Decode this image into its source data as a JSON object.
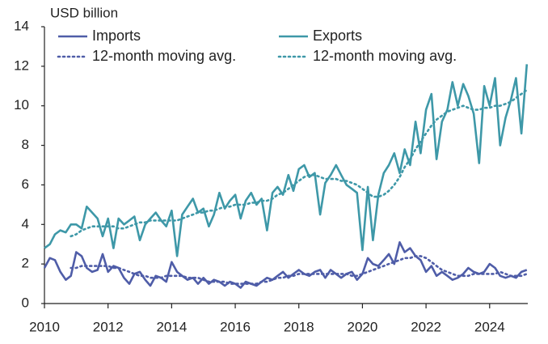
{
  "chart_data": {
    "type": "line",
    "y_label": "USD billion",
    "xlim": [
      2010,
      2025.2
    ],
    "xticks": [
      2010,
      2012,
      2014,
      2016,
      2018,
      2020,
      2022,
      2024
    ],
    "ylim": [
      0,
      14
    ],
    "yticks": [
      0,
      2,
      4,
      6,
      8,
      10,
      12,
      14
    ],
    "x": [
      2010,
      2010.17,
      2010.33,
      2010.5,
      2010.67,
      2010.83,
      2011,
      2011.17,
      2011.33,
      2011.5,
      2011.67,
      2011.83,
      2012,
      2012.17,
      2012.33,
      2012.5,
      2012.67,
      2012.83,
      2013,
      2013.17,
      2013.33,
      2013.5,
      2013.67,
      2013.83,
      2014,
      2014.17,
      2014.33,
      2014.5,
      2014.67,
      2014.83,
      2015,
      2015.17,
      2015.33,
      2015.5,
      2015.67,
      2015.83,
      2016,
      2016.17,
      2016.33,
      2016.5,
      2016.67,
      2016.83,
      2017,
      2017.17,
      2017.33,
      2017.5,
      2017.67,
      2017.83,
      2018,
      2018.17,
      2018.33,
      2018.5,
      2018.67,
      2018.83,
      2019,
      2019.17,
      2019.33,
      2019.5,
      2019.67,
      2019.83,
      2020,
      2020.17,
      2020.33,
      2020.5,
      2020.67,
      2020.83,
      2021,
      2021.17,
      2021.33,
      2021.5,
      2021.67,
      2021.83,
      2022,
      2022.17,
      2022.33,
      2022.5,
      2022.67,
      2022.83,
      2023,
      2023.17,
      2023.33,
      2023.5,
      2023.67,
      2023.83,
      2024,
      2024.17,
      2024.33,
      2024.5,
      2024.67,
      2024.83,
      2025,
      2025.17
    ],
    "series": [
      {
        "name": "Imports",
        "color": "#4f5da8",
        "style": "solid",
        "values": [
          1.8,
          2.3,
          2.2,
          1.6,
          1.2,
          1.4,
          2.6,
          2.4,
          1.8,
          1.6,
          1.7,
          2.5,
          1.6,
          1.9,
          1.8,
          1.3,
          1.0,
          1.5,
          1.6,
          1.2,
          0.9,
          1.4,
          1.3,
          1.1,
          2.1,
          1.6,
          1.4,
          1.2,
          1.3,
          1.0,
          1.3,
          1.0,
          1.2,
          1.1,
          0.9,
          1.1,
          1.0,
          0.8,
          1.1,
          1.0,
          0.9,
          1.1,
          1.3,
          1.2,
          1.4,
          1.6,
          1.3,
          1.5,
          1.7,
          1.5,
          1.4,
          1.6,
          1.7,
          1.3,
          1.7,
          1.5,
          1.3,
          1.5,
          1.6,
          1.2,
          1.5,
          2.3,
          2.0,
          1.9,
          2.2,
          2.5,
          2.0,
          3.1,
          2.6,
          2.8,
          2.4,
          2.2,
          1.6,
          1.9,
          1.4,
          1.6,
          1.4,
          1.2,
          1.3,
          1.5,
          1.8,
          1.6,
          1.5,
          1.6,
          2.0,
          1.8,
          1.4,
          1.3,
          1.4,
          1.3,
          1.6,
          1.7
        ]
      },
      {
        "name": "Exports",
        "color": "#3e98a8",
        "style": "solid",
        "values": [
          2.8,
          3.0,
          3.5,
          3.7,
          3.6,
          4.0,
          4.0,
          3.8,
          4.9,
          4.6,
          4.3,
          3.4,
          4.3,
          2.8,
          4.3,
          4.0,
          4.2,
          4.4,
          3.2,
          4.0,
          4.3,
          4.6,
          4.2,
          3.9,
          4.7,
          2.4,
          4.5,
          4.9,
          5.3,
          4.6,
          4.8,
          3.9,
          4.5,
          5.6,
          4.8,
          5.2,
          5.5,
          4.3,
          5.2,
          5.6,
          5.0,
          5.3,
          3.7,
          5.6,
          5.9,
          5.5,
          6.5,
          5.7,
          6.8,
          7.0,
          6.4,
          6.6,
          4.5,
          6.1,
          6.5,
          7.0,
          6.5,
          6.0,
          5.8,
          5.6,
          2.7,
          5.9,
          3.2,
          5.5,
          6.6,
          7.0,
          7.6,
          6.6,
          7.8,
          7.0,
          9.2,
          7.6,
          9.8,
          10.6,
          7.3,
          9.2,
          9.8,
          11.2,
          10.0,
          11.1,
          10.5,
          9.6,
          7.1,
          11.0,
          10.0,
          11.4,
          8.0,
          9.4,
          10.3,
          11.4,
          8.6,
          12.1
        ]
      },
      {
        "name": "12-month moving avg.",
        "color": "#4f5da8",
        "style": "dotted",
        "values": [
          null,
          null,
          null,
          null,
          null,
          1.8,
          1.8,
          1.9,
          1.9,
          1.9,
          1.9,
          1.9,
          1.9,
          1.8,
          1.8,
          1.7,
          1.6,
          1.5,
          1.4,
          1.4,
          1.3,
          1.3,
          1.3,
          1.4,
          1.4,
          1.4,
          1.4,
          1.3,
          1.3,
          1.3,
          1.2,
          1.1,
          1.1,
          1.1,
          1.1,
          1.0,
          1.0,
          1.0,
          1.0,
          1.0,
          1.0,
          1.1,
          1.1,
          1.2,
          1.3,
          1.3,
          1.4,
          1.4,
          1.5,
          1.5,
          1.5,
          1.5,
          1.5,
          1.5,
          1.5,
          1.5,
          1.5,
          1.5,
          1.4,
          1.4,
          1.5,
          1.6,
          1.7,
          1.8,
          1.9,
          2.0,
          2.1,
          2.2,
          2.3,
          2.3,
          2.4,
          2.4,
          2.3,
          2.1,
          1.9,
          1.7,
          1.6,
          1.5,
          1.4,
          1.4,
          1.4,
          1.5,
          1.5,
          1.5,
          1.5,
          1.5,
          1.6,
          1.5,
          1.4,
          1.4,
          1.4,
          1.5
        ]
      },
      {
        "name": "12-month moving avg.",
        "color": "#3e98a8",
        "style": "dotted",
        "values": [
          null,
          null,
          null,
          null,
          null,
          3.4,
          3.5,
          3.7,
          3.8,
          3.9,
          3.9,
          3.9,
          3.9,
          3.9,
          3.8,
          3.8,
          3.9,
          4.0,
          4.1,
          4.1,
          4.2,
          4.2,
          4.2,
          4.2,
          4.2,
          4.2,
          4.3,
          4.4,
          4.5,
          4.6,
          4.6,
          4.7,
          4.7,
          4.8,
          4.9,
          4.9,
          5.0,
          5.0,
          5.0,
          5.1,
          5.1,
          5.2,
          5.2,
          5.3,
          5.5,
          5.6,
          5.8,
          6.0,
          6.2,
          6.4,
          6.5,
          6.5,
          6.4,
          6.3,
          6.3,
          6.3,
          6.2,
          6.2,
          6.1,
          6.0,
          5.8,
          5.6,
          5.4,
          5.4,
          5.5,
          5.7,
          6.0,
          6.4,
          6.9,
          7.3,
          7.8,
          8.2,
          8.6,
          9.0,
          9.3,
          9.5,
          9.7,
          9.8,
          9.9,
          10.0,
          9.9,
          9.8,
          9.8,
          9.9,
          9.9,
          10.0,
          10.0,
          10.1,
          10.2,
          10.4,
          10.6,
          10.8
        ]
      }
    ]
  }
}
